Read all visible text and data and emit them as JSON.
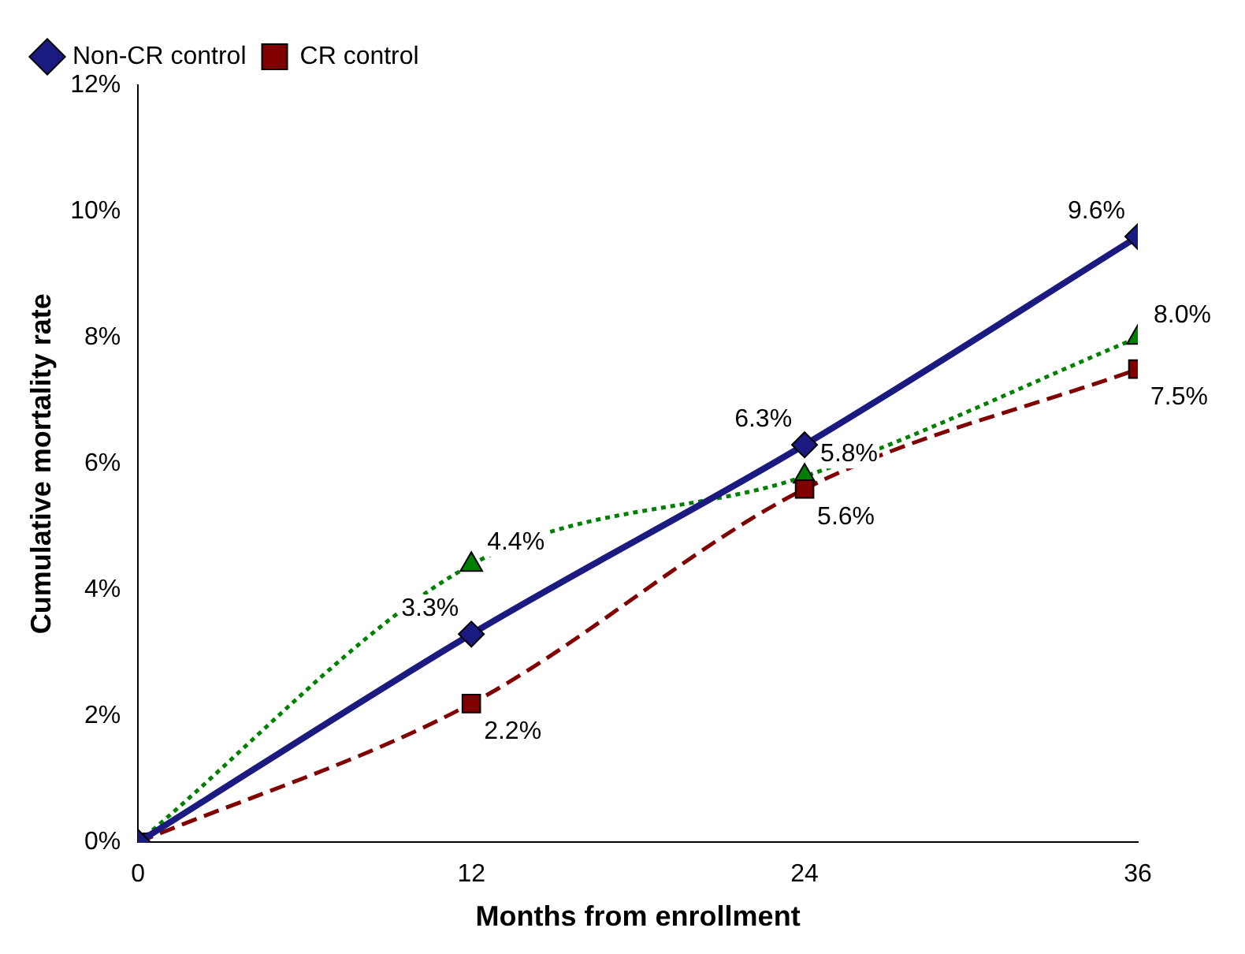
{
  "chart_data": {
    "type": "line",
    "xlabel": "Months from enrollment",
    "ylabel": "Cumulative mortality rate",
    "x": [
      0,
      12,
      24,
      36
    ],
    "xlim": [
      0,
      36
    ],
    "xticks": [
      0,
      12,
      24,
      36
    ],
    "ylim": [
      0,
      12
    ],
    "yticks": [
      {
        "value": 0,
        "label": "0%"
      },
      {
        "value": 2,
        "label": "2%"
      },
      {
        "value": 4,
        "label": "4%"
      },
      {
        "value": 6,
        "label": "6%"
      },
      {
        "value": 8,
        "label": "8%"
      },
      {
        "value": 10,
        "label": "10%"
      },
      {
        "value": 12,
        "label": "12%"
      }
    ],
    "grid": false,
    "legend": "top left",
    "series": [
      {
        "name": "Non-CR control",
        "color": "#1a1a80",
        "values": [
          0,
          3.3,
          6.3,
          9.6
        ],
        "marker": "diamond",
        "line_style": "solid",
        "value_labels": [
          null,
          "3.3%",
          "6.3%",
          "9.6%"
        ]
      },
      {
        "name": "CR control",
        "color": "#800000",
        "values": [
          0,
          2.2,
          5.6,
          7.5
        ],
        "marker": "square",
        "line_style": "dashed",
        "value_labels": [
          null,
          "2.2%",
          "5.6%",
          "7.5%"
        ]
      },
      {
        "color": "#008000",
        "values": [
          0,
          4.4,
          5.8,
          8.0
        ],
        "marker": "triangle",
        "line_style": "dotted",
        "value_labels": [
          null,
          "4.4%",
          "5.8%",
          "8.0%"
        ]
      }
    ]
  }
}
